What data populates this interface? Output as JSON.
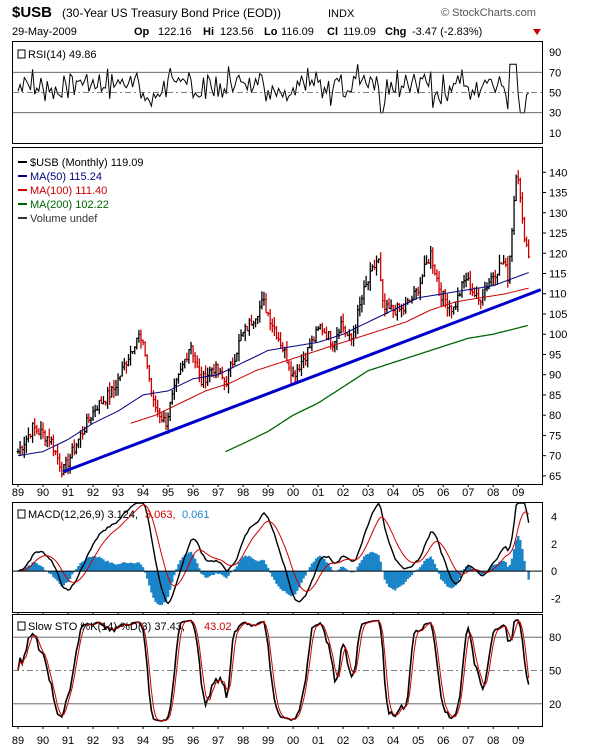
{
  "header": {
    "symbol": "$USB",
    "name": "(30-Year US Treasury Bond Price (EOD))",
    "exchange": "INDX",
    "watermark": "© StockCharts.com",
    "date": "29-May-2009",
    "op_label": "Op",
    "op": "122.16",
    "hi_label": "Hi",
    "hi": "123.56",
    "lo_label": "Lo",
    "lo": "116.09",
    "cl_label": "Cl",
    "cl": "119.09",
    "chg_label": "Chg",
    "chg": "-3.47 (-2.83%)",
    "chg_color": "#cc0000"
  },
  "panels": {
    "rsi": {
      "label": "RSI(14) 49.86",
      "ticks": [
        90,
        70,
        50,
        30,
        10
      ]
    },
    "price": {
      "legend": [
        {
          "text": "$USB (Monthly) 119.09",
          "color": "#000000"
        },
        {
          "text": "MA(50) 115.24",
          "color": "#000080"
        },
        {
          "text": "MA(100) 111.40",
          "color": "#cc0000"
        },
        {
          "text": "MA(200) 102.22",
          "color": "#006600"
        },
        {
          "text": "Volume undef",
          "color": "#333333"
        }
      ],
      "ticks": [
        140,
        135,
        130,
        125,
        120,
        115,
        110,
        105,
        100,
        95,
        90,
        85,
        80,
        75,
        70,
        65
      ]
    },
    "macd": {
      "label_main": "MACD(12,26,9) 3.124,",
      "label_signal": "3.063,",
      "label_hist": "0.061",
      "ticks": [
        4,
        2,
        0,
        -2
      ]
    },
    "sto": {
      "label_main": "Slow STO %K(14) %D(3) 37.43,",
      "label_d": "43.02",
      "ticks": [
        80,
        50,
        20
      ]
    }
  },
  "colors": {
    "up": "#000000",
    "down": "#cc0000",
    "ma50": "#000080",
    "ma100": "#cc0000",
    "ma200": "#006600",
    "trend": "#0000cc",
    "macd": "#000000",
    "signal": "#cc0000",
    "hist": "#1a85c8"
  },
  "chart_data": {
    "type": "line",
    "title": "$USB (30-Year US Treasury Bond Price (EOD)) INDX",
    "x_ticks": [
      "89",
      "90",
      "91",
      "92",
      "93",
      "94",
      "95",
      "96",
      "97",
      "98",
      "99",
      "00",
      "01",
      "02",
      "03",
      "04",
      "05",
      "06",
      "07",
      "08",
      "09"
    ],
    "price_anchors": [
      [
        1989.0,
        71
      ],
      [
        1989.6,
        77
      ],
      [
        1990.3,
        74
      ],
      [
        1990.8,
        66
      ],
      [
        1991.5,
        75
      ],
      [
        1992.1,
        82
      ],
      [
        1992.8,
        86
      ],
      [
        1993.8,
        100
      ],
      [
        1994.1,
        95
      ],
      [
        1994.4,
        83
      ],
      [
        1994.9,
        78
      ],
      [
        1995.2,
        85
      ],
      [
        1995.9,
        98
      ],
      [
        1996.3,
        88
      ],
      [
        1996.8,
        92
      ],
      [
        1997.3,
        88
      ],
      [
        1997.9,
        99
      ],
      [
        1998.8,
        108
      ],
      [
        1999.5,
        98
      ],
      [
        2000.0,
        90
      ],
      [
        2000.5,
        95
      ],
      [
        2001.1,
        102
      ],
      [
        2001.6,
        98
      ],
      [
        2001.9,
        103
      ],
      [
        2002.3,
        98
      ],
      [
        2002.8,
        110
      ],
      [
        2003.4,
        119
      ],
      [
        2003.6,
        106
      ],
      [
        2004.4,
        106
      ],
      [
        2004.9,
        110
      ],
      [
        2005.5,
        120
      ],
      [
        2005.9,
        110
      ],
      [
        2006.4,
        106
      ],
      [
        2006.9,
        114
      ],
      [
        2007.4,
        108
      ],
      [
        2007.9,
        114
      ],
      [
        2008.4,
        118
      ],
      [
        2008.6,
        114
      ],
      [
        2008.95,
        143
      ],
      [
        2009.15,
        128
      ],
      [
        2009.42,
        119.09
      ]
    ],
    "ma_anchors": {
      "ma50": [
        [
          1989.0,
          70
        ],
        [
          1990.0,
          71
        ],
        [
          1991.0,
          74
        ],
        [
          1992.0,
          78
        ],
        [
          1993.0,
          81
        ],
        [
          1994.0,
          85
        ],
        [
          1995.0,
          86
        ],
        [
          1996.0,
          89
        ],
        [
          1997.0,
          90
        ],
        [
          1998.0,
          93
        ],
        [
          1999.0,
          96
        ],
        [
          2000.0,
          97
        ],
        [
          2001.0,
          98
        ],
        [
          2002.0,
          100
        ],
        [
          2003.0,
          103
        ],
        [
          2004.0,
          106
        ],
        [
          2005.0,
          109
        ],
        [
          2006.0,
          110
        ],
        [
          2007.0,
          111
        ],
        [
          2008.0,
          112
        ],
        [
          2009.42,
          115.24
        ]
      ],
      "ma100": [
        [
          1993.5,
          78
        ],
        [
          1994.5,
          80
        ],
        [
          1995.5,
          83
        ],
        [
          1996.5,
          86
        ],
        [
          1997.5,
          88
        ],
        [
          1998.5,
          91
        ],
        [
          1999.5,
          93
        ],
        [
          2000.5,
          95
        ],
        [
          2001.5,
          97
        ],
        [
          2002.5,
          99
        ],
        [
          2003.5,
          101
        ],
        [
          2004.5,
          103
        ],
        [
          2005.5,
          106
        ],
        [
          2006.5,
          108
        ],
        [
          2007.5,
          109
        ],
        [
          2008.5,
          110
        ],
        [
          2009.42,
          111.4
        ]
      ],
      "ma200": [
        [
          1997.3,
          71
        ],
        [
          1998.0,
          73
        ],
        [
          1999.0,
          76
        ],
        [
          2000.0,
          80
        ],
        [
          2001.0,
          83
        ],
        [
          2002.0,
          87
        ],
        [
          2003.0,
          91
        ],
        [
          2004.0,
          93
        ],
        [
          2005.0,
          95
        ],
        [
          2006.0,
          97
        ],
        [
          2007.0,
          99
        ],
        [
          2008.0,
          100
        ],
        [
          2009.42,
          102.22
        ]
      ]
    },
    "trendline": [
      [
        1990.8,
        66
      ],
      [
        2009.9,
        111
      ]
    ],
    "rsi_range": [
      10,
      90
    ],
    "macd_range": [
      -3,
      5
    ],
    "sto_range": [
      0,
      100
    ],
    "xlim": [
      1988.8,
      2009.95
    ],
    "price_ylim": [
      63,
      146
    ]
  }
}
